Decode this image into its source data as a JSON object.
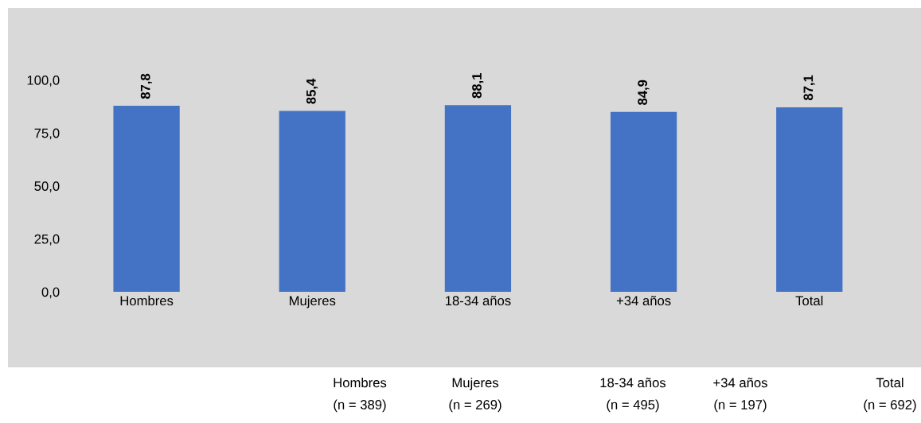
{
  "chart_data": {
    "type": "bar",
    "categories": [
      "Hombres",
      "Mujeres",
      "18-34 años",
      "+34 años",
      "Total"
    ],
    "values": [
      87.8,
      85.4,
      88.1,
      84.9,
      87.1
    ],
    "value_labels": [
      "87,8",
      "85,4",
      "88,1",
      "84,9",
      "87,1"
    ],
    "color": "#4472c4",
    "ylim": [
      0,
      134
    ],
    "yticks": [
      {
        "value": 0,
        "label": "0,0"
      },
      {
        "value": 25,
        "label": "25,0"
      },
      {
        "value": 50,
        "label": "50,0"
      },
      {
        "value": 75,
        "label": "75,0"
      },
      {
        "value": 100,
        "label": "100,0"
      }
    ],
    "grid": false,
    "legend": false,
    "annotations": [
      "Hombres\n(n = 389)",
      "Mujeres\n(n = 269)",
      "18-34 años\n(n = 495)",
      "+34 años\n(n = 197)",
      "Total\n(n = 692)"
    ]
  }
}
